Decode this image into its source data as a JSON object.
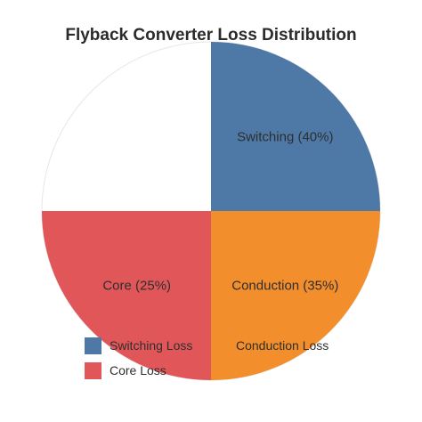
{
  "chart_data": {
    "type": "pie",
    "title": "Flyback Converter Loss Distribution",
    "slices": [
      {
        "label": "Switching (40%)",
        "name": "Switching Loss",
        "value": 40,
        "color": "#4e79a7"
      },
      {
        "label": "Conduction (35%)",
        "name": "Conduction Loss",
        "value": 35,
        "color": "#f28e2b"
      },
      {
        "label": "Core (25%)",
        "name": "Core Loss",
        "value": 25,
        "color": "#e15759"
      }
    ],
    "legend": {
      "placement": "bottom-left",
      "entries": [
        "Switching Loss",
        "Conduction Loss",
        "Core Loss"
      ]
    }
  }
}
